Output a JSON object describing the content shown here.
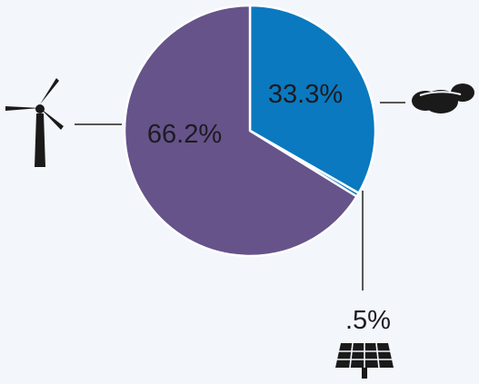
{
  "chart_data": {
    "type": "pie",
    "slices": [
      {
        "label": "33.3%",
        "value": 33.3,
        "color": "#0a79bf",
        "icon": "coal-icon"
      },
      {
        "label": ".5%",
        "value": 0.5,
        "color": "#0a79bf",
        "icon": "solar-panel-icon"
      },
      {
        "label": "66.2%",
        "value": 66.2,
        "color": "#65538a",
        "icon": "wind-turbine-icon"
      }
    ],
    "legend": "none",
    "background": "#f3f6fb",
    "slice_border": "#ffffff"
  }
}
